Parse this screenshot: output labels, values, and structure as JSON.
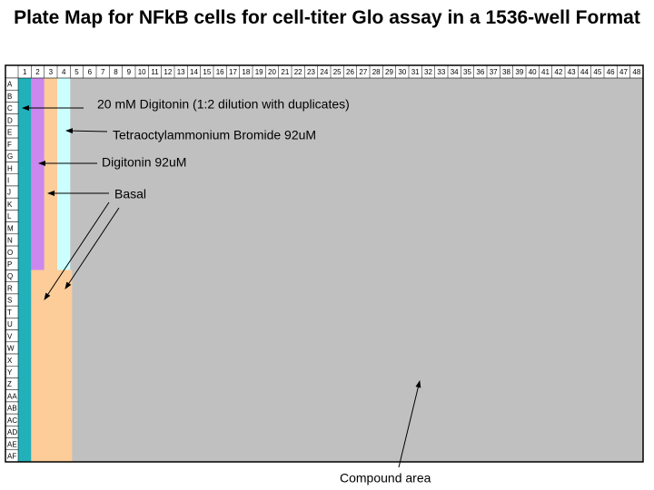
{
  "header": {
    "title": "Plate Map for NFkB cells for cell-titer Glo assay in a 1536-well Format"
  },
  "plate": {
    "columns": [
      "1",
      "2",
      "3",
      "4",
      "5",
      "6",
      "7",
      "8",
      "9",
      "10",
      "11",
      "12",
      "13",
      "14",
      "15",
      "16",
      "17",
      "18",
      "19",
      "20",
      "21",
      "22",
      "23",
      "24",
      "25",
      "26",
      "27",
      "28",
      "29",
      "30",
      "31",
      "32",
      "33",
      "34",
      "35",
      "36",
      "37",
      "38",
      "39",
      "40",
      "41",
      "42",
      "43",
      "44",
      "45",
      "46",
      "47",
      "48"
    ],
    "rows": [
      "A",
      "B",
      "C",
      "D",
      "E",
      "F",
      "G",
      "H",
      "I",
      "J",
      "K",
      "L",
      "M",
      "N",
      "O",
      "P",
      "Q",
      "R",
      "S",
      "T",
      "U",
      "V",
      "W",
      "X",
      "Y",
      "Z",
      "AA",
      "AB",
      "AC",
      "AD",
      "AE",
      "AF"
    ]
  },
  "annotations": {
    "digitonin_dilution": "20 mM Digitonin (1:2 dilution with duplicates)",
    "tetraoctylammonium": "Tetraoctylammonium Bromide 92uM",
    "digitonin": "Digitonin 92uM",
    "basal": "Basal",
    "compound_area": "Compound area"
  }
}
